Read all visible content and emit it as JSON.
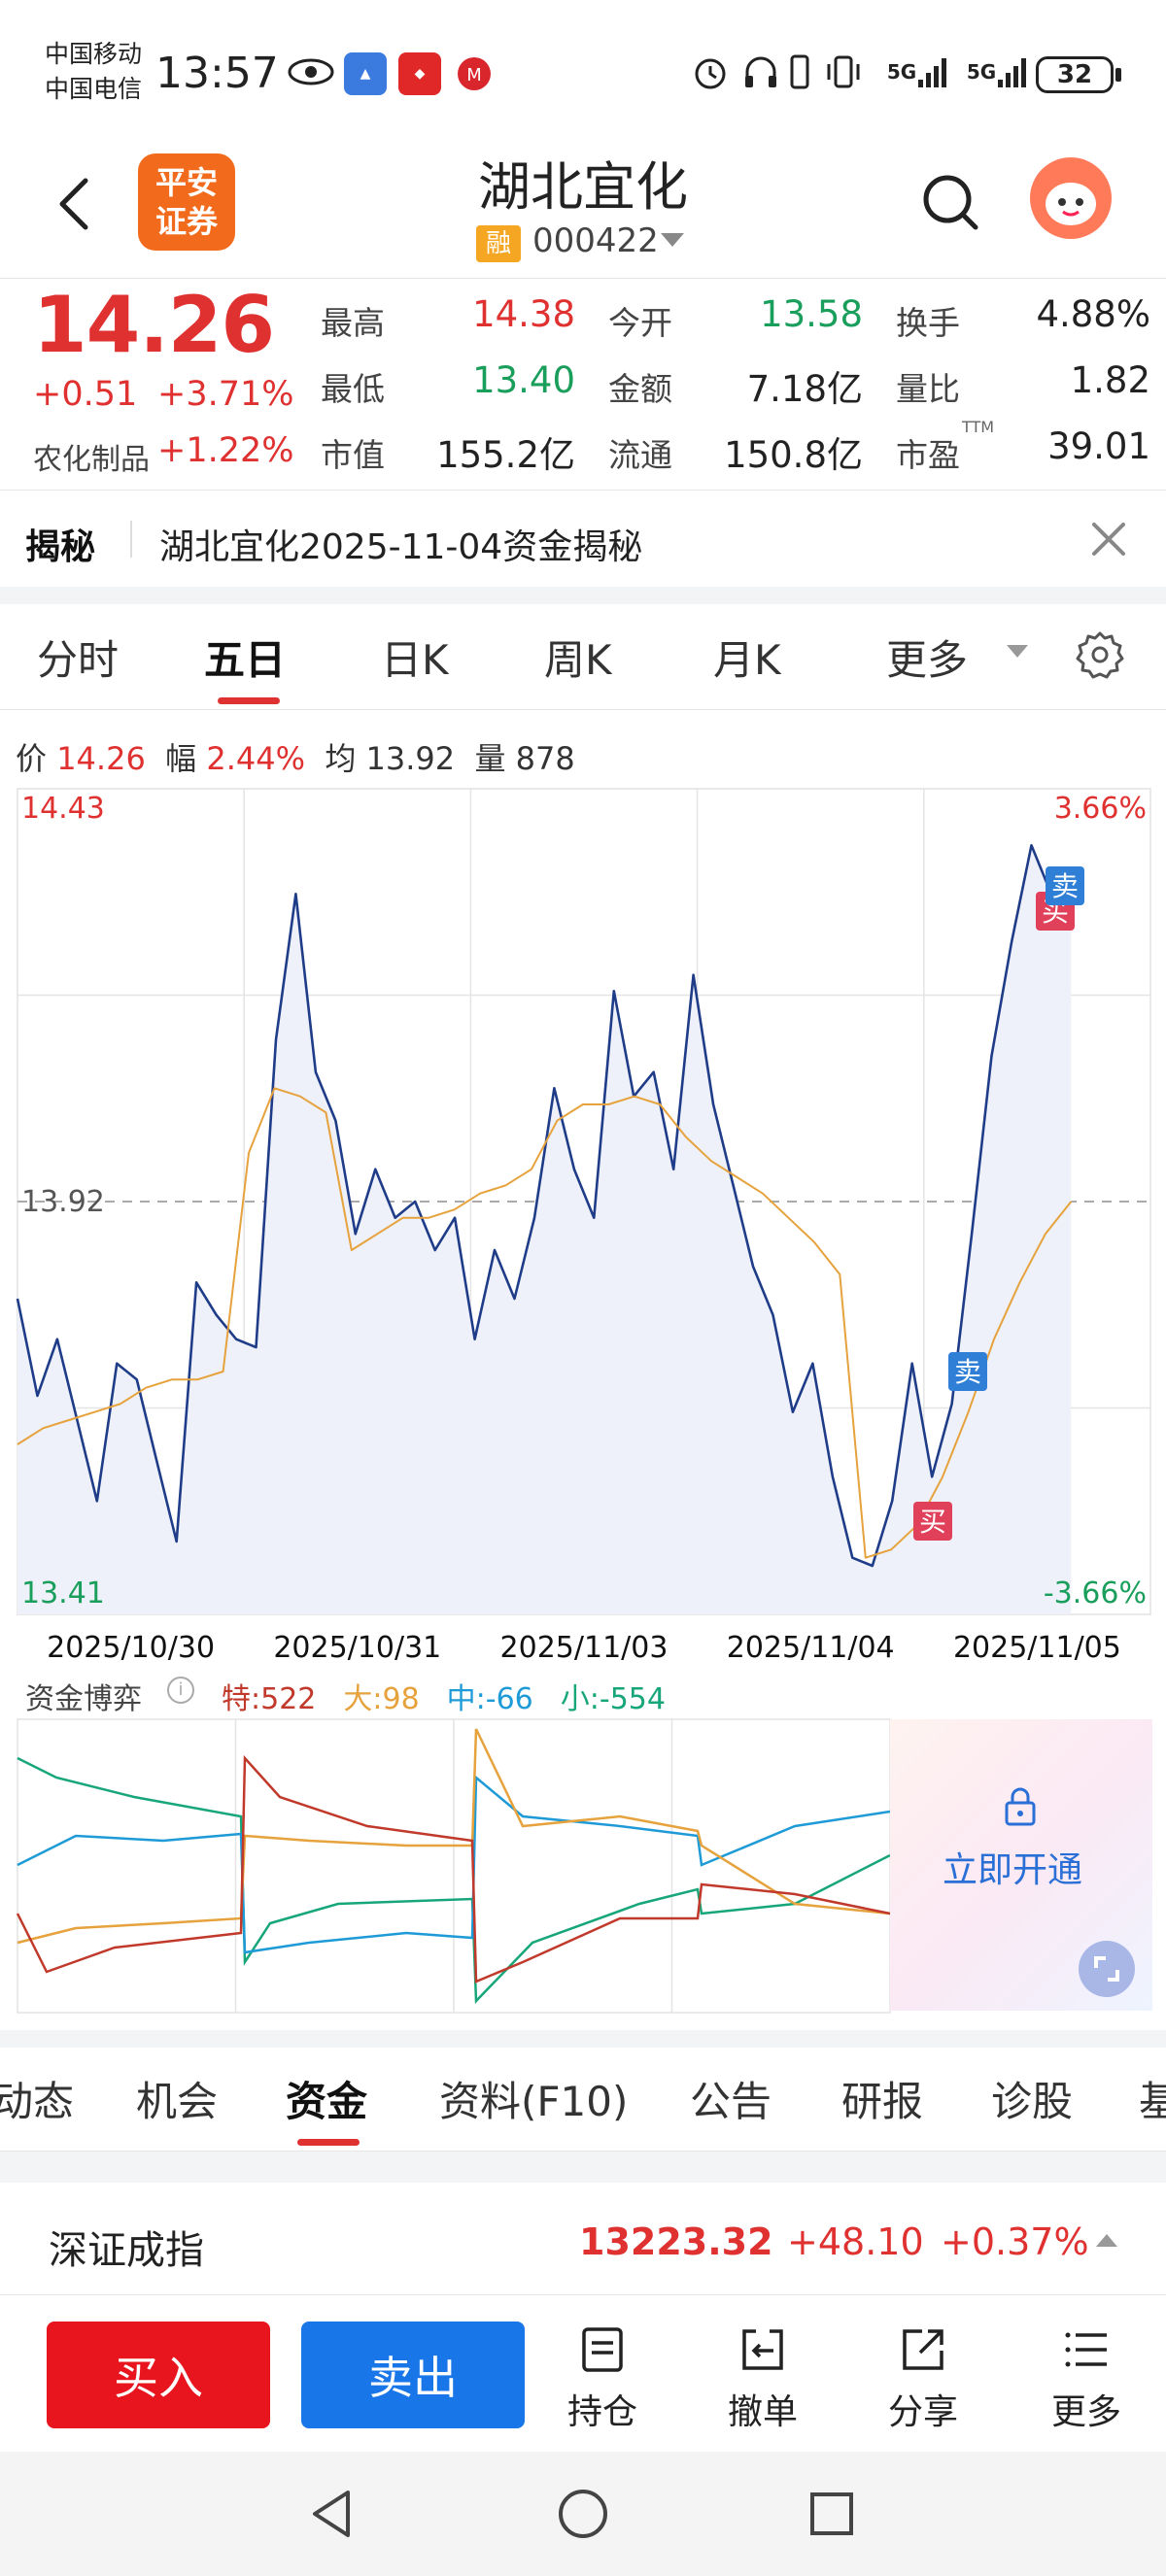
{
  "status_bar": {
    "carrier1": "中国移动",
    "carrier2": "中国电信",
    "time": "13:57",
    "network1": "5G",
    "network2": "5G",
    "battery": "32"
  },
  "header": {
    "back_icon": "chevron-left-icon",
    "broker_logo_line1": "平安",
    "broker_logo_line2": "证券",
    "stock_name": "湖北宜化",
    "margin_badge": "融",
    "stock_code": "000422"
  },
  "quote": {
    "price": "14.26",
    "change": "+0.51",
    "change_pct": "+3.71%",
    "sector_label": "农化制品",
    "sector_change": "+1.22%",
    "rows": [
      [
        {
          "label": "最高",
          "value": "14.38",
          "color": "red"
        },
        {
          "label": "今开",
          "value": "13.58",
          "color": "green"
        },
        {
          "label": "换手",
          "value": "4.88%",
          "color": "black"
        }
      ],
      [
        {
          "label": "最低",
          "value": "13.40",
          "color": "green"
        },
        {
          "label": "金额",
          "value": "7.18亿",
          "color": "black"
        },
        {
          "label": "量比",
          "value": "1.82",
          "color": "black"
        }
      ],
      [
        {
          "label": "市值",
          "value": "155.2亿",
          "color": "black"
        },
        {
          "label": "流通",
          "value": "150.8亿",
          "color": "black"
        },
        {
          "label": "市盈",
          "value": "39.01",
          "color": "black"
        }
      ]
    ],
    "ttm": "TTM"
  },
  "reveal": {
    "tag": "揭秘",
    "text": "湖北宜化2025-11-04资金揭秘"
  },
  "chart_tabs": [
    "分时",
    "五日",
    "日K",
    "周K",
    "月K",
    "更多"
  ],
  "chart_tabs_active": 1,
  "info_line": {
    "price_label": "价",
    "price": "14.26",
    "amp_label": "幅",
    "amp": "2.44%",
    "avg_label": "均",
    "avg": "13.92",
    "vol_label": "量",
    "vol": "878"
  },
  "chart_data": {
    "type": "line",
    "ylim": [
      13.41,
      14.43
    ],
    "y_high_label": "14.43",
    "y_mid_label": "13.92",
    "y_low_label": "13.41",
    "pct_high_label": "3.66%",
    "pct_low_label": "-3.66%",
    "x_labels": [
      "2025/10/30",
      "2025/10/31",
      "2025/11/03",
      "2025/11/04",
      "2025/11/05"
    ],
    "series": [
      {
        "color": "#1f3c88",
        "values": [
          13.8,
          13.68,
          13.75,
          13.65,
          13.55,
          13.72,
          13.7,
          13.6,
          13.5,
          13.82,
          13.78,
          13.75,
          13.74,
          14.12,
          14.3,
          14.08,
          14.02,
          13.88,
          13.96,
          13.9,
          13.92,
          13.86,
          13.9,
          13.75,
          13.86,
          13.8,
          13.9,
          14.06,
          13.96,
          13.9,
          14.18,
          14.05,
          14.08,
          13.96,
          14.2,
          14.04,
          13.94,
          13.84,
          13.78,
          13.66,
          13.72,
          13.58,
          13.48,
          13.47,
          13.55,
          13.72,
          13.58,
          13.67,
          13.88,
          14.1,
          14.24,
          14.36,
          14.3,
          14.26
        ]
      },
      {
        "color": "#e6a23c",
        "values": [
          13.62,
          13.64,
          13.65,
          13.66,
          13.67,
          13.69,
          13.7,
          13.7,
          13.71,
          13.98,
          14.06,
          14.05,
          14.03,
          13.86,
          13.88,
          13.9,
          13.9,
          13.91,
          13.93,
          13.94,
          13.96,
          14.02,
          14.04,
          14.04,
          14.05,
          14.04,
          14.0,
          13.97,
          13.95,
          13.93,
          13.9,
          13.87,
          13.83,
          13.48,
          13.49,
          13.52,
          13.58,
          13.66,
          13.75,
          13.82,
          13.88,
          13.92
        ]
      }
    ],
    "marks": [
      {
        "text": "卖",
        "kind": "sell"
      },
      {
        "text": "买",
        "kind": "buy"
      },
      {
        "text": "买",
        "kind": "buy"
      },
      {
        "text": "卖",
        "kind": "sell"
      }
    ]
  },
  "fund_flow": {
    "title": "资金博弈",
    "info_icon": "info-icon",
    "items": [
      {
        "label": "特:522",
        "color": "#c0392b"
      },
      {
        "label": "大:98",
        "color": "#e6a23c"
      },
      {
        "label": "中:-66",
        "color": "#1e9bd7"
      },
      {
        "label": "小:-554",
        "color": "#17a67a"
      }
    ],
    "lock_icon": "lock-icon",
    "unlock_text": "立即开通",
    "expand_icon": "expand-icon"
  },
  "sub_tabs": [
    "动态",
    "机会",
    "资金",
    "资料(F10)",
    "公告",
    "研报",
    "诊股",
    "基"
  ],
  "sub_tabs_active": 2,
  "index_bar": {
    "name": "深证成指",
    "value": "13223.32",
    "change": "+48.10",
    "pct": "+0.37%"
  },
  "bottom_bar": {
    "buy": "买入",
    "sell": "卖出",
    "tools": [
      {
        "label": "持仓",
        "icon": "holdings-icon"
      },
      {
        "label": "撤单",
        "icon": "cancel-order-icon"
      },
      {
        "label": "分享",
        "icon": "share-icon"
      },
      {
        "label": "更多",
        "icon": "menu-icon"
      }
    ]
  }
}
